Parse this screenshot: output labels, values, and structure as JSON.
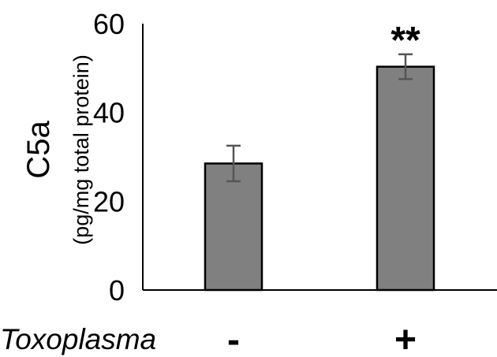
{
  "chart_data": {
    "type": "bar",
    "categories": [
      "-",
      "+"
    ],
    "values": [
      28.5,
      50.3
    ],
    "errors": [
      4.0,
      2.8
    ],
    "significance": [
      "",
      "**"
    ],
    "ylim": [
      0,
      60
    ],
    "yticks": [
      0,
      20,
      40,
      60
    ],
    "ylabel_main": "C5a",
    "ylabel_sub": "(pg/mg total protein)",
    "xlabel": "Toxoplasma",
    "bar_color": "#808080",
    "error_color": "#555555"
  }
}
